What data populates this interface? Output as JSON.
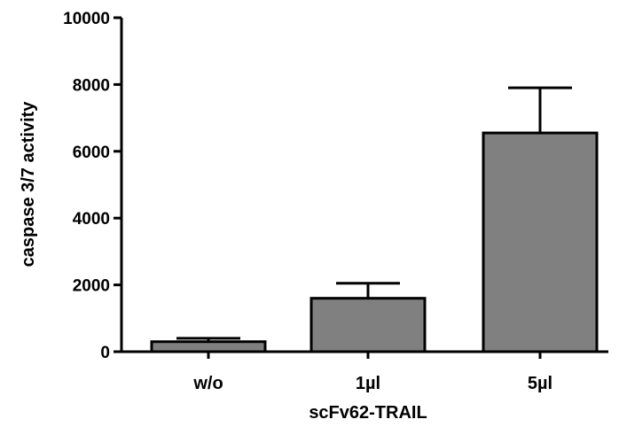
{
  "chart_data": {
    "type": "bar",
    "title": "",
    "xlabel": "scFv62-TRAIL",
    "ylabel": "caspase 3/7 activity",
    "categories": [
      "w/o",
      "1µl",
      "5µl"
    ],
    "values": [
      300,
      1600,
      6550
    ],
    "errors": [
      100,
      450,
      1350
    ],
    "ylim": [
      0,
      10000
    ],
    "yticks": [
      0,
      2000,
      4000,
      6000,
      8000,
      10000
    ],
    "ytick_labels": [
      "0",
      "2000",
      "4000",
      "6000",
      "8000",
      "10000"
    ],
    "bar_color": "#808080",
    "grid": false
  }
}
